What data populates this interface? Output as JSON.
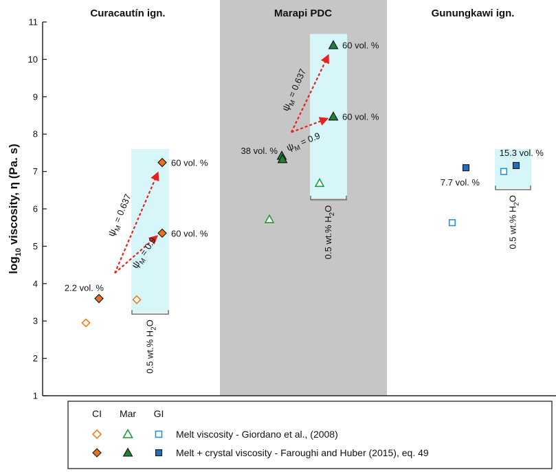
{
  "chart_data": {
    "type": "scatter",
    "ylabel": "log10 viscosity, η (Pa. s)",
    "ylabel_parts": {
      "pre": "log",
      "sub": "10",
      "post": " viscosity, η (Pa. s)"
    },
    "ylim": [
      1,
      11
    ],
    "yticks": [
      1,
      2,
      3,
      4,
      5,
      6,
      7,
      8,
      9,
      10,
      11
    ],
    "x_groups": [
      "Curacautín ign.",
      "Marapi PDC",
      "Gunungkawi ign."
    ],
    "shaded_group": "Marapi PDC",
    "series": [
      {
        "name": "Melt viscosity - Giordano et al., (2008)",
        "fill": "open",
        "points": [
          {
            "group": "Curacautín ign.",
            "marker": "diamond",
            "color": "#F07D1A",
            "y": 2.95
          },
          {
            "group": "Curacautín ign.",
            "marker": "diamond",
            "color": "#F07D1A",
            "y": 3.57,
            "water": true
          },
          {
            "group": "Marapi PDC",
            "marker": "triangle",
            "color": "#1E9A3A",
            "y": 5.72
          },
          {
            "group": "Marapi PDC",
            "marker": "triangle",
            "color": "#1E9A3A",
            "y": 6.69,
            "water": true
          },
          {
            "group": "Gunungkawi ign.",
            "marker": "square",
            "color": "#2A8FD9",
            "y": 5.63
          },
          {
            "group": "Gunungkawi ign.",
            "marker": "square",
            "color": "#2A8FD9",
            "y": 7.0,
            "water": true
          }
        ]
      },
      {
        "name": "Melt + crystal viscosity - Faroughi and Huber (2015), eq. 49",
        "fill": "filled",
        "points": [
          {
            "group": "Curacautín ign.",
            "marker": "diamond",
            "color": "#E8711C",
            "y": 3.6,
            "label": "2.2 vol. %"
          },
          {
            "group": "Curacautín ign.",
            "marker": "diamond",
            "color": "#E8711C",
            "y": 5.35,
            "water": true,
            "label": "60 vol. %"
          },
          {
            "group": "Curacautín ign.",
            "marker": "diamond",
            "color": "#E8711C",
            "y": 7.24,
            "water": true,
            "label": "60 vol. %"
          },
          {
            "group": "Marapi PDC",
            "marker": "triangle",
            "color": "#1E7F35",
            "y": 7.42,
            "label": "38 vol. %"
          },
          {
            "group": "Marapi PDC",
            "marker": "triangle",
            "color": "#1E7F35",
            "y": 7.33
          },
          {
            "group": "Marapi PDC",
            "marker": "triangle",
            "color": "#1E7F35",
            "y": 8.47,
            "water": true,
            "label": "60 vol. %"
          },
          {
            "group": "Marapi PDC",
            "marker": "triangle",
            "color": "#1E7F35",
            "y": 10.38,
            "water": true,
            "label": "60 vol. %"
          },
          {
            "group": "Gunungkawi ign.",
            "marker": "square",
            "color": "#1F6FBF",
            "y": 7.1,
            "label": "7.7 vol. %"
          },
          {
            "group": "Gunungkawi ign.",
            "marker": "square",
            "color": "#1F6FBF",
            "y": 7.16,
            "water": true,
            "label": "15.3 vol. %"
          }
        ]
      }
    ],
    "annotations": {
      "water_box_label": "0.5 wt.% H2O",
      "water_box_parts": {
        "pre": "0.5 wt.% H",
        "sub": "2",
        "post": "O"
      },
      "psi_high": {
        "greek": "ψ",
        "sub": "M",
        "rest": " = 0.637"
      },
      "psi_low": {
        "greek": "ψ",
        "sub": "M",
        "rest": " = 0.9"
      },
      "arrow_color": "#E8211E",
      "box_color": "#D6F6FA"
    },
    "legend": {
      "group_headers": [
        "CI",
        "Mar",
        "GI"
      ],
      "rows": [
        "Melt viscosity - Giordano et al., (2008)",
        "Melt + crystal viscosity - Faroughi and Huber (2015), eq. 49"
      ]
    },
    "colors": {
      "shade": "#C6C6C6",
      "axis": "#222222"
    }
  }
}
